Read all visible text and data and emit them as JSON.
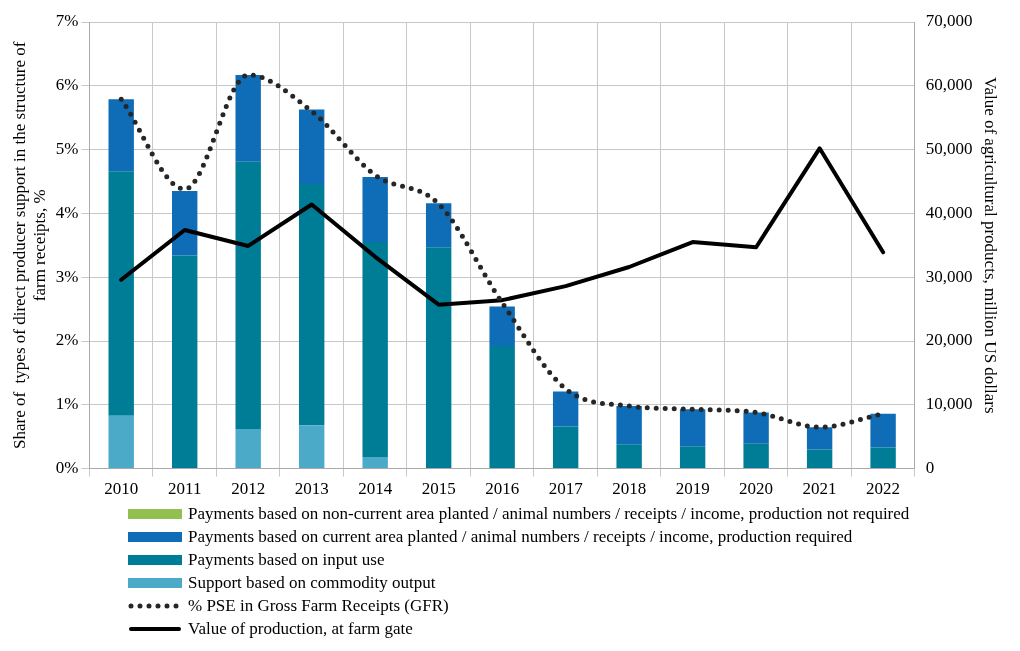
{
  "chart_data": {
    "type": "bar",
    "stacked": true,
    "categories": [
      "2010",
      "2011",
      "2012",
      "2013",
      "2014",
      "2015",
      "2016",
      "2017",
      "2018",
      "2019",
      "2020",
      "2021",
      "2022"
    ],
    "ylabel": "Share of  types of direct producer support in the structure of farm receipts, %",
    "y2label": "Value of agricultural products, million US dollars",
    "ylim": [
      0,
      7
    ],
    "yticks": [
      {
        "value": 0,
        "label": "0%"
      },
      {
        "value": 1,
        "label": "1%"
      },
      {
        "value": 2,
        "label": "2%"
      },
      {
        "value": 3,
        "label": "3%"
      },
      {
        "value": 4,
        "label": "4%"
      },
      {
        "value": 5,
        "label": "5%"
      },
      {
        "value": 6,
        "label": "6%"
      },
      {
        "value": 7,
        "label": "7%"
      }
    ],
    "y2lim": [
      0,
      70000
    ],
    "y2ticks": [
      0,
      {
        "value": 10000,
        "label": "10,000"
      },
      {
        "value": 20000,
        "label": "20,000"
      },
      {
        "value": 30000,
        "label": "30,000"
      },
      {
        "value": 40000,
        "label": "40,000"
      },
      {
        "value": 50000,
        "label": "50,000"
      },
      {
        "value": 60000,
        "label": "60,000"
      },
      {
        "value": 70000,
        "label": "70,000"
      }
    ],
    "grid": true,
    "legend": "bottom",
    "marker": "none",
    "series": [
      {
        "name": "Support based on commodity output",
        "color": "#4aaac8",
        "values": [
          0.83,
          0,
          0.62,
          0.68,
          0.18,
          0,
          0,
          0,
          0,
          0,
          0,
          0,
          0
        ]
      },
      {
        "name": "Payments based on input use",
        "color": "#007d96",
        "values": [
          3.83,
          3.34,
          4.19,
          3.78,
          3.37,
          3.47,
          1.92,
          0.66,
          0.38,
          0.35,
          0.39,
          0.3,
          0.33
        ]
      },
      {
        "name": "Payments based on current area planted / animal numbers / receipts / income, production required",
        "color": "#0f6cb6",
        "values": [
          1.13,
          1.01,
          1.36,
          1.17,
          1.02,
          0.69,
          0.62,
          0.55,
          0.6,
          0.58,
          0.49,
          0.35,
          0.53
        ]
      },
      {
        "name": "Payments based on non-current area planted / animal numbers / receipts / income, production not required",
        "color": "#92c050",
        "values": [
          0,
          0,
          0,
          0,
          0,
          0,
          0,
          0,
          0,
          0,
          0,
          0,
          0
        ]
      },
      {
        "name": "% PSE in Gross Farm Receipts (GFR)",
        "type": "line",
        "line_style": "dotted",
        "color": "#262626",
        "values": [
          5.79,
          4.38,
          6.17,
          5.6,
          4.6,
          4.15,
          2.6,
          1.25,
          0.98,
          0.93,
          0.88,
          0.65,
          0.86
        ]
      },
      {
        "name": "Value of production, at farm gate",
        "type": "line",
        "line_style": "solid",
        "axis": "y2",
        "color": "#000000",
        "values": [
          29600,
          37400,
          34900,
          41400,
          33200,
          25700,
          26400,
          28600,
          31600,
          35500,
          34700,
          50200,
          33900
        ]
      }
    ]
  }
}
